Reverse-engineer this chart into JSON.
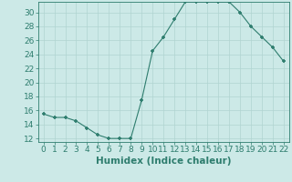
{
  "title": "",
  "xlabel": "Humidex (Indice chaleur)",
  "ylabel": "",
  "x": [
    0,
    1,
    2,
    3,
    4,
    5,
    6,
    7,
    8,
    9,
    10,
    11,
    12,
    13,
    14,
    15,
    16,
    17,
    18,
    19,
    20,
    21,
    22
  ],
  "y": [
    15.5,
    15.0,
    15.0,
    14.5,
    13.5,
    12.5,
    12.0,
    12.0,
    12.0,
    17.5,
    24.5,
    26.5,
    29.0,
    31.5,
    31.5,
    31.5,
    31.5,
    31.5,
    30.0,
    28.0,
    26.5,
    25.0,
    23.0
  ],
  "line_color": "#2e7d6e",
  "marker": "+",
  "bg_color": "#cce9e7",
  "grid_color": "#b0d4d1",
  "ylim": [
    11.5,
    31.5
  ],
  "yticks": [
    12,
    14,
    16,
    18,
    20,
    22,
    24,
    26,
    28,
    30
  ],
  "xlim": [
    -0.5,
    22.5
  ],
  "xticks": [
    0,
    1,
    2,
    3,
    4,
    5,
    6,
    7,
    8,
    9,
    10,
    11,
    12,
    13,
    14,
    15,
    16,
    17,
    18,
    19,
    20,
    21,
    22
  ],
  "tick_label_fontsize": 6.5,
  "xlabel_fontsize": 7.5
}
